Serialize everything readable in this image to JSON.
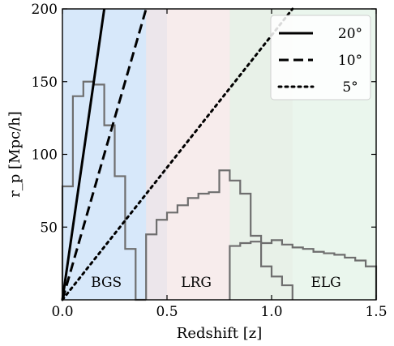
{
  "chart_data": {
    "type": "line",
    "xlabel": "Redshift [z]",
    "ylabel": "r_p [Mpc/h]",
    "xlim": [
      0.0,
      1.5
    ],
    "ylim": [
      0,
      200
    ],
    "x_ticks": [
      {
        "value": 0.0,
        "label": "0.0"
      },
      {
        "value": 0.5,
        "label": "0.5"
      },
      {
        "value": 1.0,
        "label": "1.0"
      },
      {
        "value": 1.5,
        "label": "1.5"
      }
    ],
    "y_ticks": [
      {
        "value": 50,
        "label": "50"
      },
      {
        "value": 100,
        "label": "100"
      },
      {
        "value": 150,
        "label": "150"
      },
      {
        "value": 200,
        "label": "200"
      }
    ],
    "grid": false,
    "legend_position": "top-right",
    "regions": [
      {
        "name": "BGS",
        "label": "BGS",
        "x_range": [
          0.0,
          0.5
        ],
        "color": "#d7e8fa"
      },
      {
        "name": "LRG",
        "label": "LRG",
        "x_range": [
          0.4,
          1.1
        ],
        "color": "#f4e4e4"
      },
      {
        "name": "ELG",
        "label": "ELG",
        "x_range": [
          0.8,
          1.5
        ],
        "color": "#e2f2e6"
      }
    ],
    "series": [
      {
        "name": "20°",
        "style": "solid",
        "color": "#000000",
        "x": [
          0.0,
          0.2
        ],
        "y": [
          0,
          200
        ]
      },
      {
        "name": "10°",
        "style": "dashed",
        "color": "#000000",
        "x": [
          0.0,
          0.4
        ],
        "y": [
          0,
          200
        ]
      },
      {
        "name": "5°",
        "style": "dotted",
        "color": "#000000",
        "x": [
          0.0,
          1.1
        ],
        "y": [
          0,
          200
        ]
      }
    ],
    "histograms": [
      {
        "region": "BGS",
        "color": "#6e6e6e",
        "edges": [
          0.0,
          0.05,
          0.1,
          0.15,
          0.2,
          0.25,
          0.3,
          0.35,
          0.4
        ],
        "values": [
          78,
          140,
          150,
          148,
          120,
          85,
          35,
          0
        ]
      },
      {
        "region": "LRG",
        "color": "#6e6e6e",
        "edges": [
          0.4,
          0.45,
          0.5,
          0.55,
          0.6,
          0.65,
          0.7,
          0.75,
          0.8,
          0.85,
          0.9,
          0.95,
          1.0,
          1.05,
          1.1
        ],
        "values": [
          45,
          55,
          60,
          65,
          70,
          73,
          74,
          89,
          82,
          73,
          44,
          23,
          16,
          10
        ]
      },
      {
        "region": "ELG",
        "color": "#6e6e6e",
        "edges": [
          0.8,
          0.85,
          0.9,
          0.95,
          1.0,
          1.05,
          1.1,
          1.15,
          1.2,
          1.25,
          1.3,
          1.35,
          1.4,
          1.45,
          1.5
        ],
        "values": [
          37,
          39,
          40,
          39,
          41,
          38,
          36,
          35,
          33,
          32,
          31,
          29,
          27,
          23
        ]
      }
    ]
  }
}
